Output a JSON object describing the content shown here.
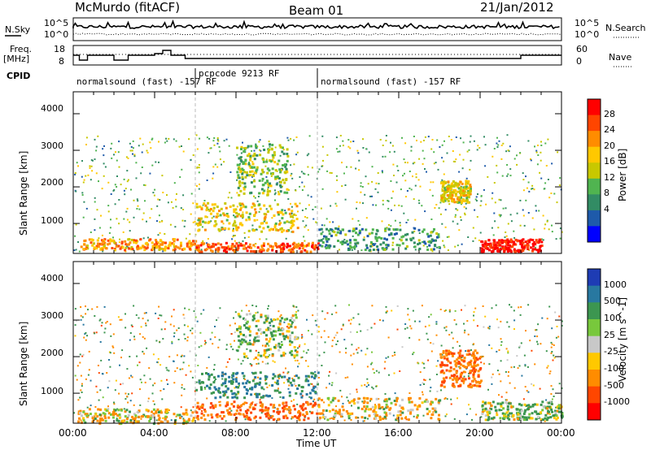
{
  "header": {
    "station": "McMurdo (fitACF)",
    "beam": "Beam 01",
    "date": "21/Jan/2012"
  },
  "strip": {
    "nsky_label": "N.Sky",
    "nsearch_label": "N.Search",
    "freq_label": "Freq.",
    "freq_unit": "[MHz]",
    "nave_label": "Nave",
    "cpid_label": "CPID",
    "noise_ticks": [
      "10^5",
      "10^0"
    ],
    "noise_ticks_right": [
      "10^5",
      "10^0"
    ],
    "freq_ticks": [
      "18",
      "8"
    ],
    "nave_ticks": [
      "60",
      "0"
    ],
    "cpid_segments": [
      {
        "label": "normalsound (fast) -157 RF",
        "start": 0,
        "end": 6
      },
      {
        "label": "pcpcode 9213 RF",
        "start": 6,
        "end": 12
      },
      {
        "label": "normalsound (fast) -157 RF",
        "start": 12,
        "end": 24
      }
    ]
  },
  "panels": {
    "ylabel": "Slant Range [km]",
    "xlabel": "Time UT",
    "yticks": [
      "1000",
      "2000",
      "3000",
      "4000"
    ],
    "xticks": [
      "00:00",
      "04:00",
      "08:00",
      "12:00",
      "16:00",
      "20:00",
      "00:00"
    ]
  },
  "power_colorbar": {
    "label": "Power [dB]",
    "ticks": [
      "28",
      "24",
      "20",
      "16",
      "12",
      "8",
      "4"
    ],
    "colors": [
      "#ff0000",
      "#ff4500",
      "#ff8c00",
      "#ffc800",
      "#c8c800",
      "#50b450",
      "#328c64",
      "#1e5aaa",
      "#0000ff"
    ]
  },
  "velocity_colorbar": {
    "label": "Velocity [m s^-1]",
    "ticks": [
      "1000",
      "500",
      "100",
      "25",
      "-25",
      "-100",
      "-500",
      "-1000"
    ],
    "colors": [
      "#1e3cb4",
      "#2878a0",
      "#3c9650",
      "#78c83c",
      "#c8c8c8",
      "#ffc800",
      "#ff8c00",
      "#ff4600",
      "#ff0000"
    ]
  },
  "chart_data": [
    {
      "type": "heatmap",
      "title": "Power",
      "xlabel": "Time UT",
      "ylabel": "Slant Range [km]",
      "xlim": [
        0,
        24
      ],
      "ylim": [
        180,
        4600
      ],
      "colorbar_label": "Power [dB]",
      "regions": [
        {
          "t0": 0.2,
          "t1": 6.0,
          "r0": 300,
          "r1": 600,
          "value": 20
        },
        {
          "t0": 6.0,
          "t1": 12.0,
          "r0": 250,
          "r1": 500,
          "value": 24
        },
        {
          "t0": 6.0,
          "t1": 11.0,
          "r0": 800,
          "r1": 1600,
          "value": 16
        },
        {
          "t0": 8.0,
          "t1": 10.5,
          "r0": 1800,
          "r1": 3200,
          "value": 12
        },
        {
          "t0": 12.0,
          "t1": 18.0,
          "r0": 300,
          "r1": 900,
          "value": 8
        },
        {
          "t0": 18.0,
          "t1": 19.5,
          "r0": 1600,
          "r1": 2200,
          "value": 16
        },
        {
          "t0": 20.0,
          "t1": 23.0,
          "r0": 250,
          "r1": 600,
          "value": 28
        }
      ]
    },
    {
      "type": "heatmap",
      "title": "Velocity",
      "xlabel": "Time UT",
      "ylabel": "Slant Range [km]",
      "xlim": [
        0,
        24
      ],
      "ylim": [
        180,
        4600
      ],
      "colorbar_label": "Velocity [m s^-1]",
      "regions": [
        {
          "t0": 0.2,
          "t1": 6.0,
          "r0": 200,
          "r1": 600,
          "value": -100
        },
        {
          "t0": 6.0,
          "t1": 12.0,
          "r0": 900,
          "r1": 1600,
          "value": 500
        },
        {
          "t0": 6.0,
          "t1": 12.0,
          "r0": 300,
          "r1": 800,
          "value": -500
        },
        {
          "t0": 8.0,
          "t1": 11.0,
          "r0": 2000,
          "r1": 3200,
          "value": 100
        },
        {
          "t0": 12.0,
          "t1": 18.0,
          "r0": 300,
          "r1": 900,
          "value": -100
        },
        {
          "t0": 18.0,
          "t1": 20.0,
          "r0": 1200,
          "r1": 2200,
          "value": -500
        },
        {
          "t0": 20.0,
          "t1": 24.0,
          "r0": 300,
          "r1": 800,
          "value": 100
        }
      ]
    }
  ]
}
